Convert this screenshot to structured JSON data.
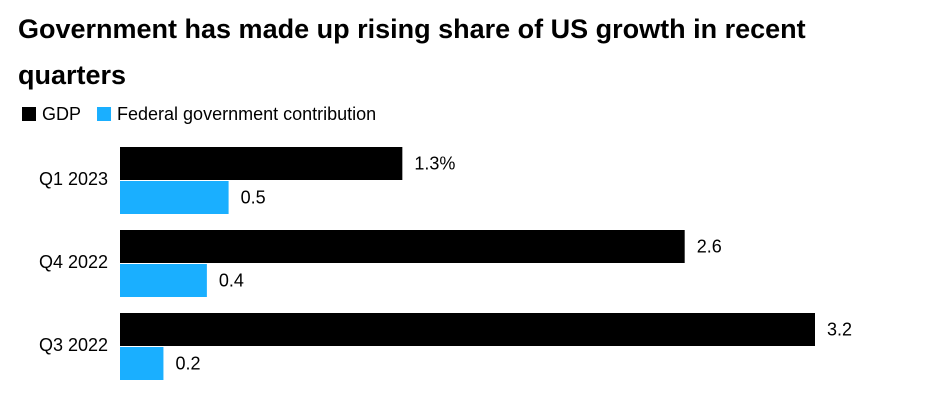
{
  "chart_data": {
    "type": "hbar",
    "title": "Government has made up rising share of US growth in recent quarters",
    "categories": [
      "Q1 2023",
      "Q4 2022",
      "Q3 2022"
    ],
    "series": [
      {
        "name": "GDP",
        "color": "#000000",
        "values": [
          1.3,
          2.6,
          3.2
        ],
        "value_labels": [
          "1.3%",
          "2.6",
          "3.2"
        ]
      },
      {
        "name": "Federal government contribution",
        "color": "#1aafff",
        "values": [
          0.5,
          0.4,
          0.2
        ]
      }
    ],
    "xlim": [
      0,
      3.2
    ],
    "legend": "top-left"
  }
}
